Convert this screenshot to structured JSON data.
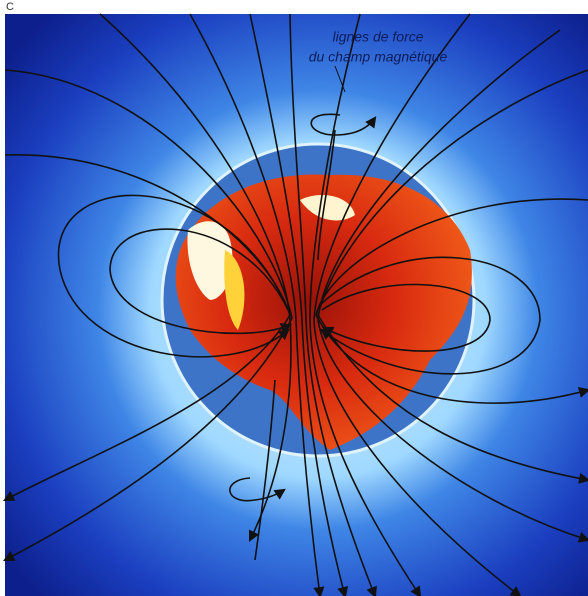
{
  "panel_label": "C",
  "annotation": [
    "lignes de force",
    "du champ magnétique"
  ]
}
